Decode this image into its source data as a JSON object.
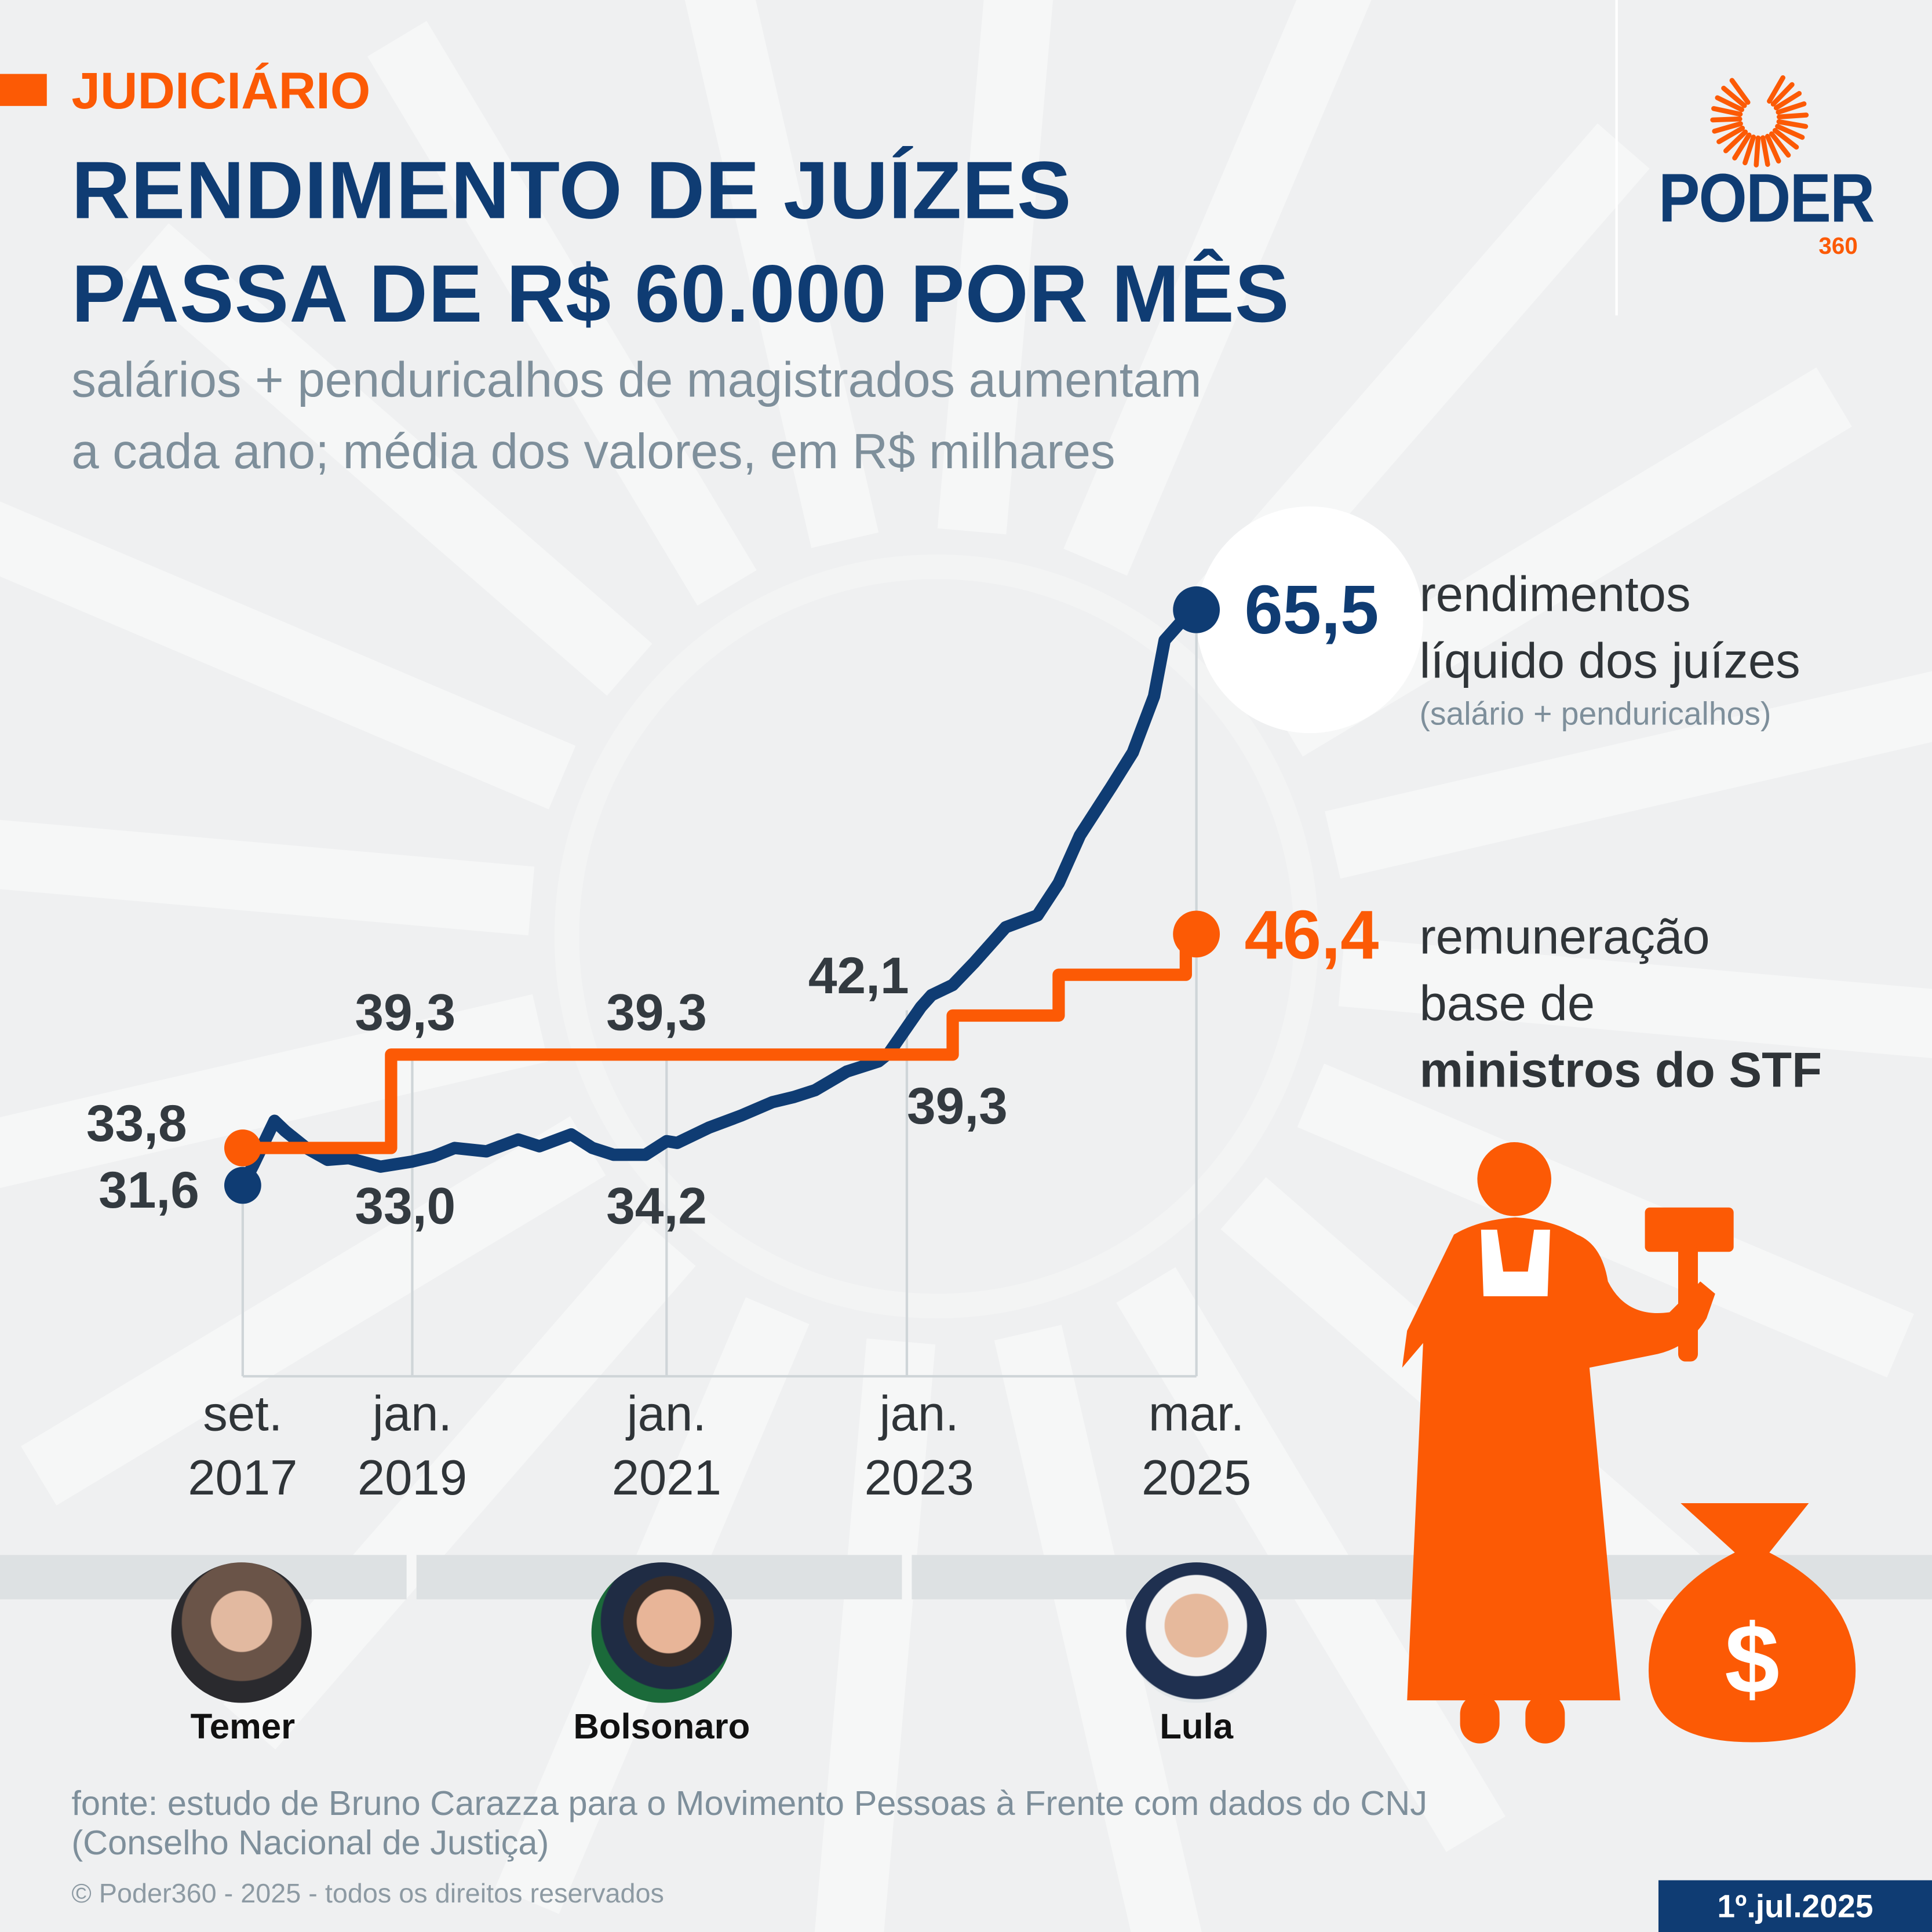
{
  "header": {
    "kicker": "JUDICIÁRIO",
    "title_line1": "RENDIMENTO DE JUÍZES",
    "title_line2": "PASSA DE R$ 60.000 POR MÊS",
    "subtitle_line1": "salários + penduricalhos de magistrados aumentam",
    "subtitle_line2": "a cada ano; média dos valores, em R$ milhares"
  },
  "logo": {
    "word": "PODER",
    "number": "360"
  },
  "colors": {
    "blue": "#0f3c73",
    "orange": "#fc5a05",
    "grid": "#cfd5d8",
    "background": "#eff0f1"
  },
  "chart_data": {
    "type": "line",
    "x_ticks": [
      {
        "date": "2017-09",
        "line1": "set.",
        "line2": "2017"
      },
      {
        "date": "2019-01",
        "line1": "jan.",
        "line2": "2019"
      },
      {
        "date": "2021-01",
        "line1": "jan.",
        "line2": "2021"
      },
      {
        "date": "2023-01",
        "line1": "jan.",
        "line2": "2023"
      },
      {
        "date": "2025-03",
        "line1": "mar.",
        "line2": "2025"
      }
    ],
    "series": [
      {
        "key": "rendimentos",
        "color": "#0f3c73",
        "label_value": "65,5",
        "label_line1": "rendimentos",
        "label_line2": "líquido dos juízes",
        "label_note": "(salário + penduricalhos)",
        "points": [
          [
            "2017-09",
            31.6
          ],
          [
            "2017-10",
            32.8
          ],
          [
            "2017-12",
            35.4
          ],
          [
            "2018-01",
            34.8
          ],
          [
            "2018-03",
            33.8
          ],
          [
            "2018-05",
            33.1
          ],
          [
            "2018-07",
            33.2
          ],
          [
            "2018-10",
            32.7
          ],
          [
            "2019-01",
            33.0
          ],
          [
            "2019-03",
            33.3
          ],
          [
            "2019-05",
            33.8
          ],
          [
            "2019-08",
            33.6
          ],
          [
            "2019-11",
            34.3
          ],
          [
            "2020-01",
            33.9
          ],
          [
            "2020-04",
            34.6
          ],
          [
            "2020-06",
            33.8
          ],
          [
            "2020-08",
            33.4
          ],
          [
            "2020-11",
            33.4
          ],
          [
            "2021-01",
            34.2
          ],
          [
            "2021-02",
            34.1
          ],
          [
            "2021-05",
            35.0
          ],
          [
            "2021-08",
            35.7
          ],
          [
            "2021-11",
            36.5
          ],
          [
            "2022-01",
            36.8
          ],
          [
            "2022-03",
            37.2
          ],
          [
            "2022-06",
            38.3
          ],
          [
            "2022-09",
            38.9
          ],
          [
            "2022-10",
            39.4
          ],
          [
            "2023-01",
            42.1
          ],
          [
            "2023-02",
            42.8
          ],
          [
            "2023-04",
            43.4
          ],
          [
            "2023-06",
            44.7
          ],
          [
            "2023-09",
            46.8
          ],
          [
            "2023-12",
            47.5
          ],
          [
            "2024-02",
            49.4
          ],
          [
            "2024-04",
            52.2
          ],
          [
            "2024-07",
            55.1
          ],
          [
            "2024-09",
            57.1
          ],
          [
            "2024-11",
            60.4
          ],
          [
            "2024-12",
            63.7
          ],
          [
            "2025-02",
            65.1
          ],
          [
            "2025-03",
            65.5
          ]
        ]
      },
      {
        "key": "remuneracao",
        "color": "#fc5a05",
        "step": true,
        "label_value": "46,4",
        "label_line1": "remuneração",
        "label_line2": "base de",
        "label_line3": "ministros do STF",
        "points": [
          [
            "2017-09",
            33.8
          ],
          [
            "2018-11",
            39.3
          ],
          [
            "2023-04",
            41.6
          ],
          [
            "2024-02",
            44.0
          ],
          [
            "2025-02",
            46.4
          ],
          [
            "2025-03",
            46.4
          ]
        ]
      }
    ],
    "data_labels": {
      "start_orange": "33,8",
      "start_blue": "31,6",
      "o2019": "39,3",
      "b2019": "33,0",
      "o2021": "39,3",
      "b2021": "34,2",
      "b2023": "42,1",
      "o2023": "39,3"
    },
    "grid": "vertical at ticks"
  },
  "presidents": [
    {
      "name": "Temer"
    },
    {
      "name": "Bolsonaro"
    },
    {
      "name": "Lula"
    }
  ],
  "footer": {
    "source_line1": "fonte: estudo de Bruno Carazza para o Movimento Pessoas à Frente com dados do CNJ",
    "source_line2": "(Conselho Nacional de Justiça)",
    "copyright": "© Poder360 - 2025 - todos os direitos reservados",
    "date": "1º.jul.2025"
  }
}
